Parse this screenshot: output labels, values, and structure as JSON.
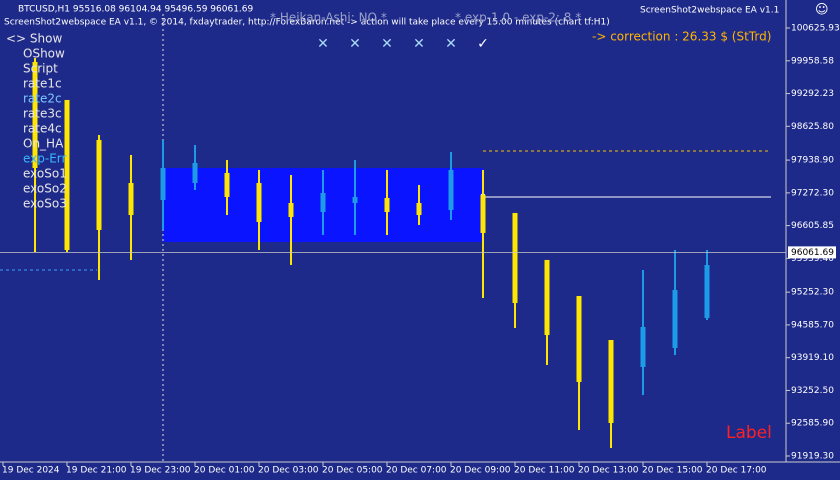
{
  "chart_data": {
    "type": "candlestick",
    "symbol_info": "BTCUSD,H1  95516.08 96104.94 95496.59 96061.69",
    "ea_info": "ScreenShot2webspace EA v1.1, © 2014, fxdaytrader, http://ForexBaron.net -> action will take place every 15.00 minutes (chart tf:H1)",
    "heikin_ashi": "* Heikan-Ashi: NO *",
    "expiry": "* exp-1.0 - exp-2: 8 *",
    "ea_name": "ScreenShot2webspace EA v1.1",
    "smiley": "☺",
    "correction": "-> correction : 26.33 $ (StTrd)",
    "corner_label": "Label",
    "menu": [
      {
        "label": "<> Show",
        "color": "#e6e6e6"
      },
      {
        "label": "OShow",
        "color": "#e6e6e6"
      },
      {
        "label": "Script",
        "color": "#e6e6e6"
      },
      {
        "label": "rate1c",
        "color": "#e6e6e6"
      },
      {
        "label": "rate2c",
        "color": "#7cc8ff"
      },
      {
        "label": "rate3c",
        "color": "#e6e6e6"
      },
      {
        "label": "rate4c",
        "color": "#e6e6e6"
      },
      {
        "label": "On_HA",
        "color": "#e6e6e6"
      },
      {
        "label": "exp-Err",
        "color": "#39b8ff"
      },
      {
        "label": "exoSo1",
        "color": "#e6e6e6"
      },
      {
        "label": "exoSo2",
        "color": "#e6e6e6"
      },
      {
        "label": "exoSo3",
        "color": "#e6e6e6"
      }
    ],
    "buttons": [
      "✕",
      "✕",
      "✕",
      "✕",
      "✕",
      "✓"
    ],
    "categories": [
      "19 Dec 2024",
      null,
      "19 Dec 21:00",
      null,
      "19 Dec 23:00",
      null,
      "20 Dec 01:00",
      null,
      "20 Dec 03:00",
      null,
      "20 Dec 05:00",
      null,
      "20 Dec 07:00",
      null,
      "20 Dec 09:00",
      null,
      "20 Dec 11:00",
      null,
      "20 Dec 13:00",
      null,
      "20 Dec 15:00",
      null,
      "20 Dec 17:00"
    ],
    "open": [
      null,
      99935,
      99162,
      98348,
      97473,
      97127,
      97473,
      97677,
      97473,
      97066,
      96883,
      97066,
      97168,
      97066,
      96924,
      97229,
      96863,
      95907,
      95174,
      94279,
      93730,
      94116,
      94727
    ],
    "high": [
      null,
      100016,
      99162,
      98450,
      98043,
      98348,
      98246,
      97941,
      97738,
      97636,
      97738,
      97941,
      97738,
      97432,
      98104,
      97738,
      96863,
      95907,
      95174,
      94279,
      95703,
      96110,
      96110
    ],
    "low": [
      null,
      96069,
      96069,
      95500,
      95907,
      96517,
      97331,
      96822,
      96110,
      95805,
      96415,
      96415,
      96415,
      96619,
      96720,
      95134,
      94523,
      93771,
      92448,
      92082,
      93160,
      93974,
      94686
    ],
    "close": [
      null,
      97778,
      96110,
      96517,
      96822,
      97778,
      97880,
      97188,
      96680,
      96781,
      97270,
      97188,
      96883,
      96822,
      97738,
      96456,
      95032,
      94381,
      93425,
      92591,
      94544,
      95296,
      95805
    ],
    "up_color": "#1e9be8",
    "down_color": "#ffe600",
    "last_price": 96061.69,
    "ylim": [
      91797,
      100911
    ],
    "yticks": [
      100625.93,
      99958.58,
      99292.23,
      {
        "value": 98625.8,
        "label": "98625.80"
      },
      {
        "value": 97938.9,
        "label": "97938.90"
      },
      {
        "value": 97272.3,
        "label": "97272.30"
      },
      96605.85,
      {
        "value": 95939.4,
        "label": "95939.40"
      },
      {
        "value": 95252.3,
        "label": "95252.30"
      },
      {
        "value": 94585.7,
        "label": "94585.70"
      },
      {
        "value": 93919.1,
        "label": "93919.10"
      },
      {
        "value": 93252.5,
        "label": "93252.50"
      },
      {
        "value": 92585.9,
        "label": "92585.90"
      },
      {
        "value": 91919.3,
        "label": "91919.30"
      }
    ]
  }
}
